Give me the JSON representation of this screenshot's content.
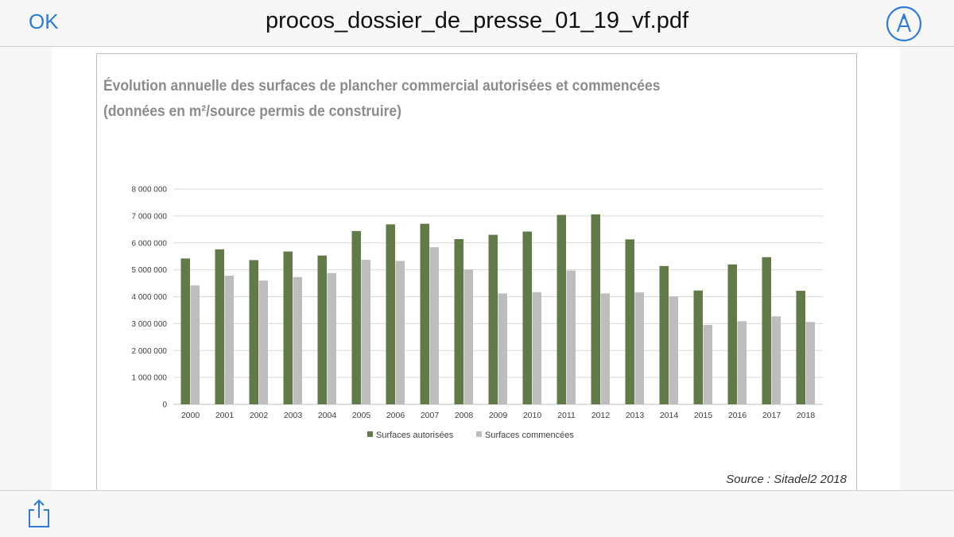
{
  "toolbar": {
    "ok_label": "OK",
    "document_title": "procos_dossier_de_presse_01_19_vf.pdf",
    "markup_icon": "markup-pen-icon",
    "share_icon": "share-icon",
    "accent_color": "#2f7bd9"
  },
  "figure": {
    "title_line1": "Évolution annuelle des surfaces de plancher commercial autorisées et commencées",
    "title_line2": "(données en m²/source permis de construire)",
    "source": "Source : Sitadel2 2018"
  },
  "chart_data": {
    "type": "bar",
    "categories": [
      "2000",
      "2001",
      "2002",
      "2003",
      "2004",
      "2005",
      "2006",
      "2007",
      "2008",
      "2009",
      "2010",
      "2011",
      "2012",
      "2013",
      "2014",
      "2015",
      "2016",
      "2017",
      "2018"
    ],
    "series": [
      {
        "name": "Surfaces autorisées",
        "color": "#617a47",
        "values": [
          5420000,
          5760000,
          5360000,
          5680000,
          5530000,
          6440000,
          6690000,
          6710000,
          6140000,
          6300000,
          6420000,
          7040000,
          7060000,
          6130000,
          5140000,
          4230000,
          5200000,
          5470000,
          4220000
        ]
      },
      {
        "name": "Surfaces commencées",
        "color": "#bdbdbd",
        "values": [
          4420000,
          4780000,
          4600000,
          4730000,
          4880000,
          5370000,
          5330000,
          5840000,
          5010000,
          4120000,
          4170000,
          4970000,
          4120000,
          4160000,
          4010000,
          2950000,
          3090000,
          3270000,
          3060000
        ]
      }
    ],
    "ylim": [
      0,
      8000000
    ],
    "yticks": [
      0,
      1000000,
      2000000,
      3000000,
      4000000,
      5000000,
      6000000,
      7000000,
      8000000
    ],
    "ytick_labels": [
      "0",
      "1 000 000",
      "2 000 000",
      "3 000 000",
      "4 000 000",
      "5 000 000",
      "6 000 000",
      "7 000 000",
      "8 000 000"
    ],
    "grid": true,
    "legend_position": "bottom"
  }
}
